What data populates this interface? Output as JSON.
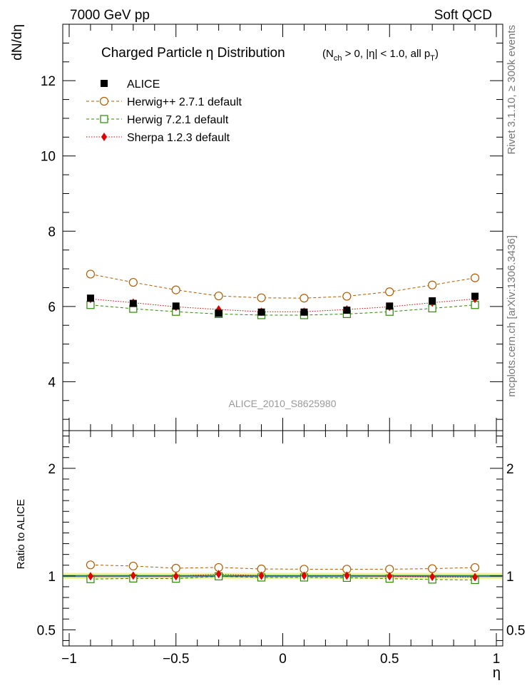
{
  "header": {
    "left": "7000 GeV pp",
    "right": "Soft QCD"
  },
  "side_labels": {
    "rivet": "Rivet 3.1.10, ≥ 300k events",
    "mcplots": "mcplots.cern.ch [arXiv:1306.3436]"
  },
  "chart_data": {
    "type": "line",
    "title": "Charged Particle  η Distribution",
    "title_cuts": "(N_ch > 0, |η| < 1.0, all p_T)",
    "title_cuts_parts": {
      "open": "(N",
      "ch": "ch",
      "mid": " > 0, |η| < 1.0, all p",
      "T": "T",
      "close": ")"
    },
    "analysis_id": "ALICE_2010_S8625980",
    "xlabel": "η",
    "ylabel": "dN/dη",
    "ratio_ylabel": "Ratio to ALICE",
    "xlim": [
      -1.03,
      1.03
    ],
    "ylim": [
      2.7,
      13.5
    ],
    "ratio_ylim": [
      0.35,
      2.35
    ],
    "x_ticks": [
      -1,
      -0.5,
      0,
      0.5,
      1
    ],
    "x_tick_labels": [
      "−1",
      "−0.5",
      "0",
      "0.5",
      "1"
    ],
    "y_ticks": [
      4,
      6,
      8,
      10,
      12
    ],
    "y_tick_labels": [
      "4",
      "6",
      "8",
      "10",
      "12"
    ],
    "ratio_y_ticks": [
      0.5,
      1,
      2
    ],
    "ratio_y_tick_labels": [
      "0.5",
      "1",
      "2"
    ],
    "x": [
      -0.9,
      -0.7,
      -0.5,
      -0.3,
      -0.1,
      0.1,
      0.3,
      0.5,
      0.7,
      0.9
    ],
    "series": [
      {
        "name": "ALICE",
        "marker": "filled-square",
        "color": "#000000",
        "line": "none",
        "values": [
          6.22,
          6.08,
          6.01,
          5.82,
          5.85,
          5.85,
          5.9,
          6.01,
          6.15,
          6.27
        ]
      },
      {
        "name": "Herwig++ 2.7.1 default",
        "marker": "open-circle",
        "color": "#b35a00",
        "line": "dashed",
        "values": [
          6.86,
          6.64,
          6.44,
          6.28,
          6.23,
          6.22,
          6.27,
          6.39,
          6.57,
          6.76
        ]
      },
      {
        "name": "Herwig 7.2.1 default",
        "marker": "open-square",
        "color": "#2a8a00",
        "line": "dashed",
        "values": [
          6.04,
          5.94,
          5.86,
          5.8,
          5.77,
          5.77,
          5.8,
          5.86,
          5.95,
          6.04
        ]
      },
      {
        "name": "Sherpa 1.2.3 default",
        "marker": "filled-diamond",
        "color": "#e00000",
        "line": "dotted",
        "values": [
          6.2,
          6.1,
          5.99,
          5.92,
          5.86,
          5.86,
          5.92,
          5.99,
          6.1,
          6.2
        ]
      }
    ],
    "ratio_series": [
      {
        "name": "Herwig++ 2.7.1 default",
        "values": [
          1.103,
          1.092,
          1.072,
          1.079,
          1.065,
          1.063,
          1.063,
          1.063,
          1.068,
          1.078
        ]
      },
      {
        "name": "Herwig 7.2.1 default",
        "values": [
          0.971,
          0.977,
          0.975,
          0.997,
          0.986,
          0.986,
          0.983,
          0.975,
          0.967,
          0.963
        ]
      },
      {
        "name": "Sherpa 1.2.3 default",
        "values": [
          0.997,
          1.003,
          0.997,
          1.017,
          1.002,
          1.002,
          1.003,
          0.997,
          0.992,
          0.989
        ]
      }
    ],
    "ratio_band": {
      "inner": [
        0.985,
        1.015
      ],
      "outer": [
        0.97,
        1.03
      ]
    },
    "legend_position": "top-left"
  }
}
